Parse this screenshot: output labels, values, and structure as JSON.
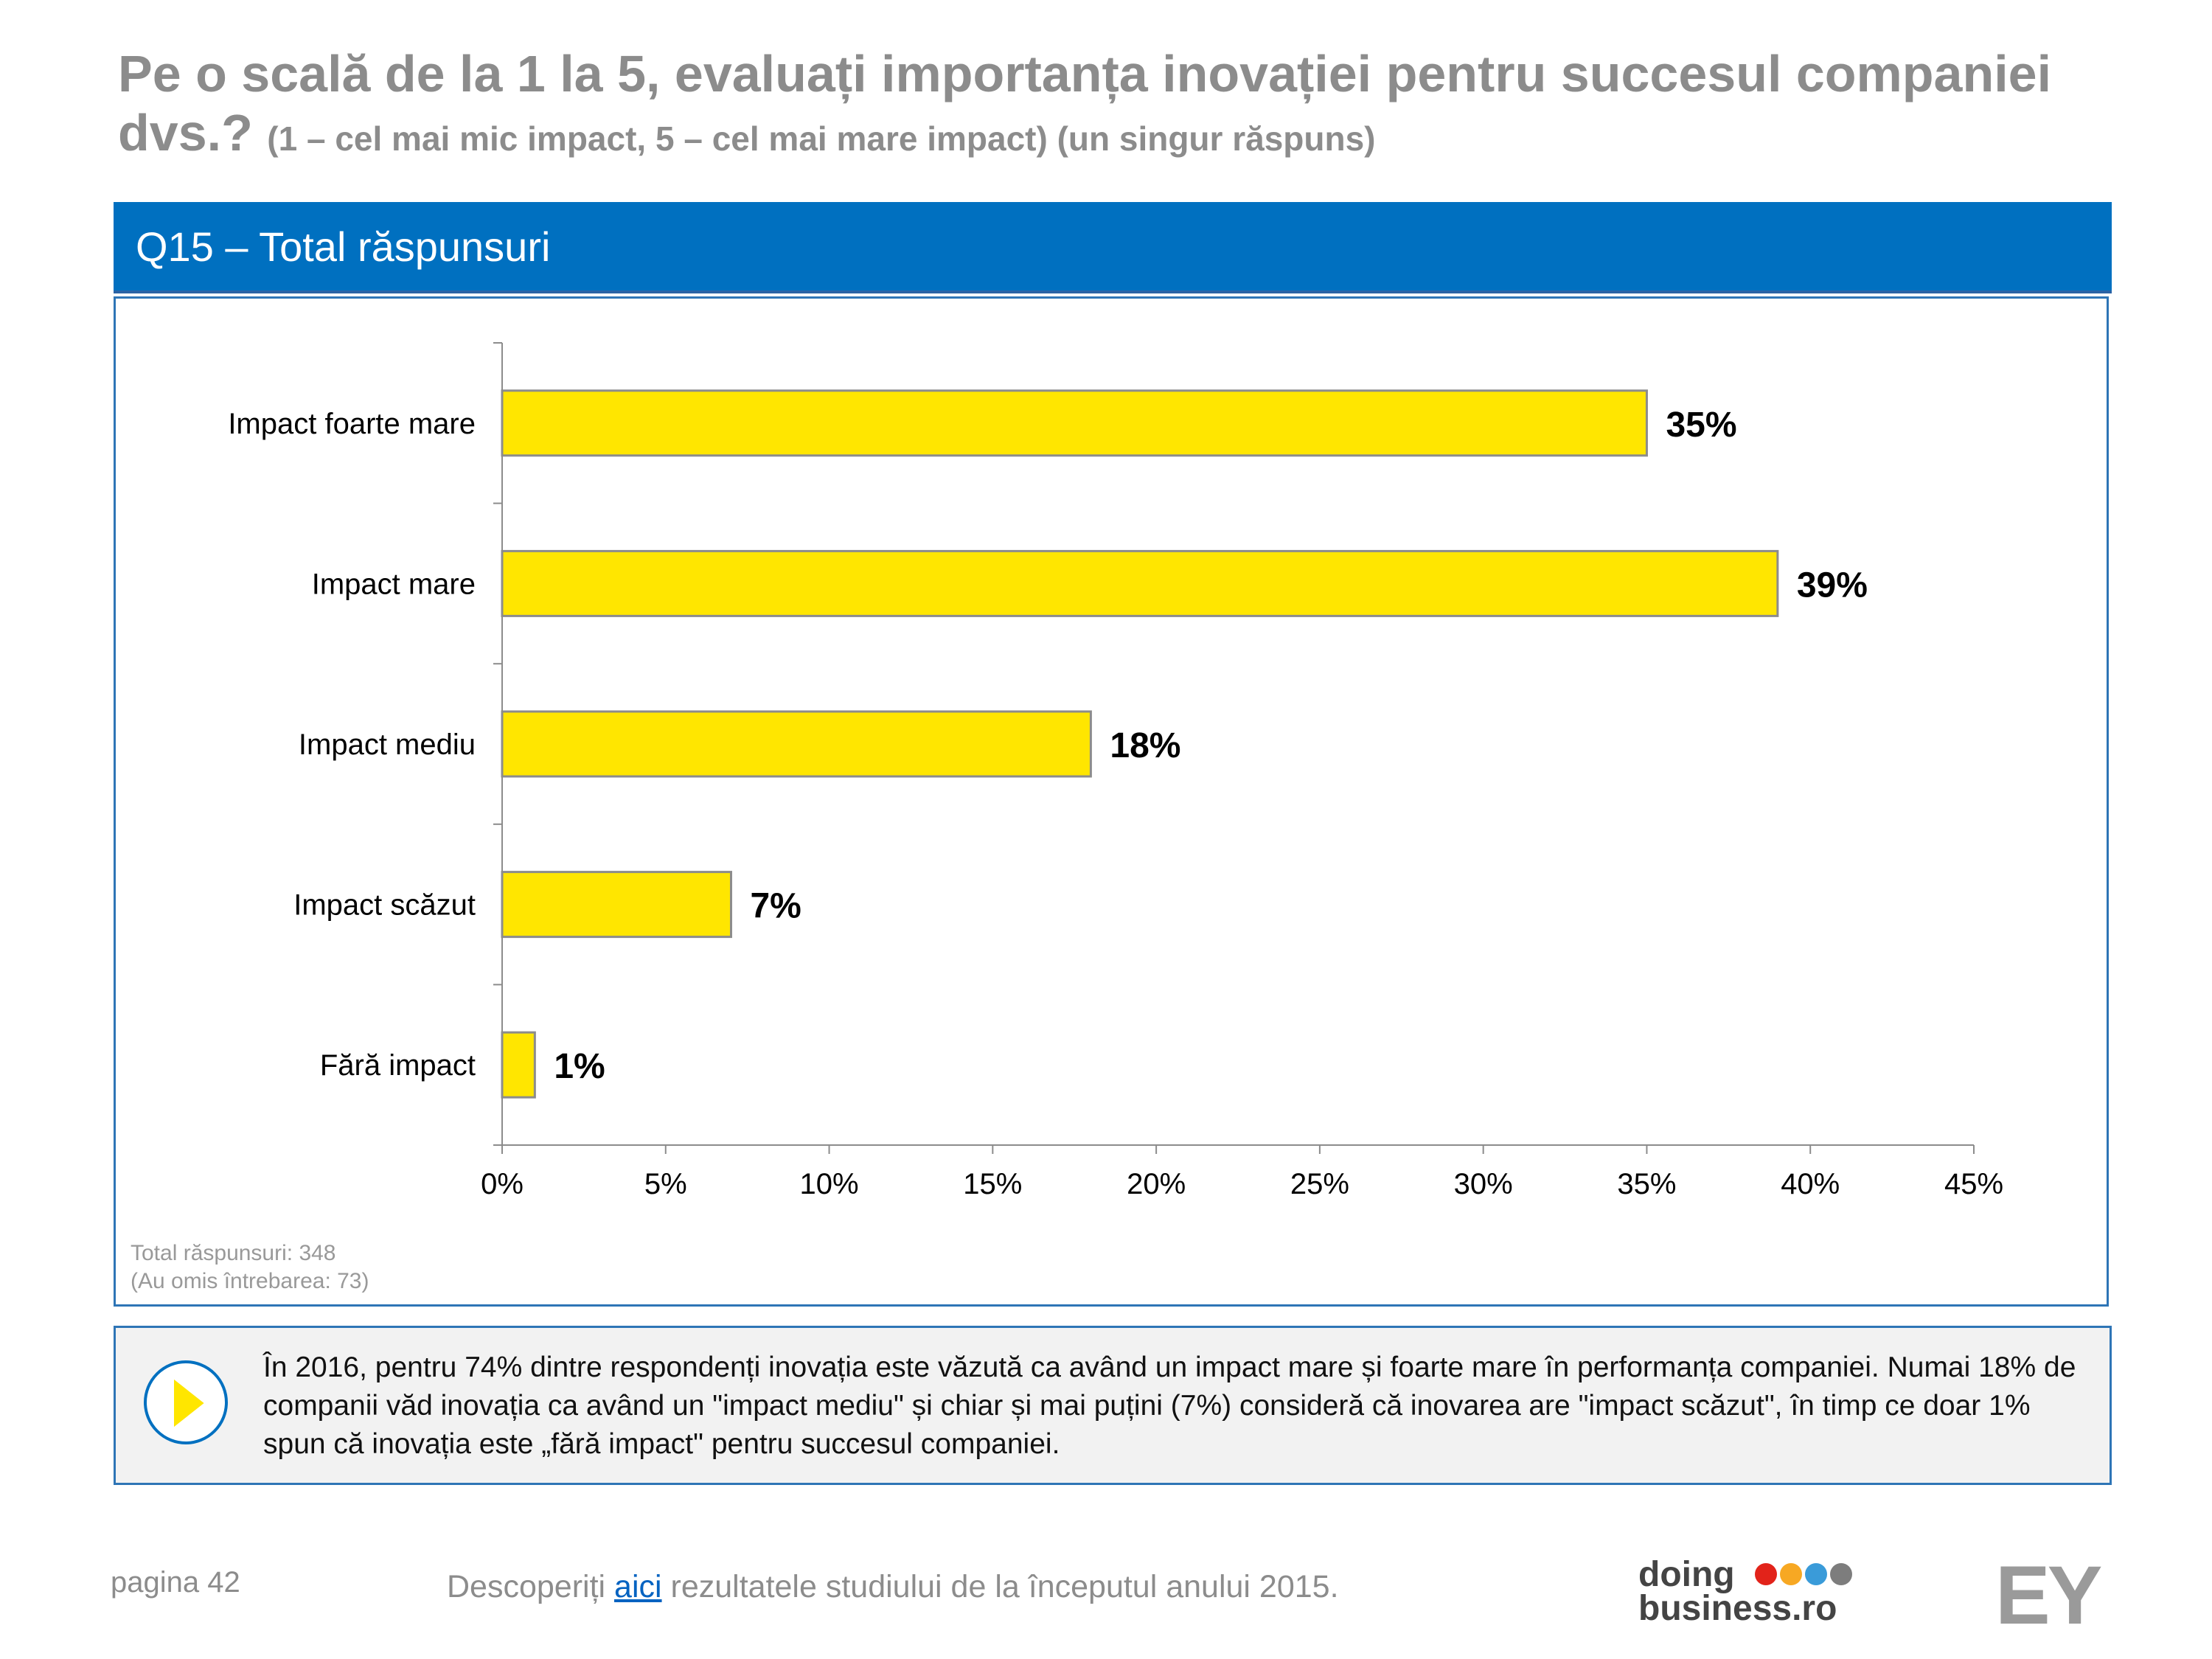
{
  "title": {
    "main": "Pe o scală de la 1 la 5, evaluați importanța inovației pentru succesul companiei dvs.?",
    "subtitle": "(1 – cel mai mic impact, 5 – cel mai mare impact) (un singur răspuns)"
  },
  "section": {
    "label": "Q15 – Total răspunsuri"
  },
  "chart_data": {
    "type": "bar",
    "orientation": "horizontal",
    "title": "Q15 – Total răspunsuri",
    "categories": [
      "Impact foarte mare",
      "Impact mare",
      "Impact mediu",
      "Impact scăzut",
      "Fără impact"
    ],
    "values": [
      35,
      39,
      18,
      7,
      1
    ],
    "value_labels": [
      "35%",
      "39%",
      "18%",
      "7%",
      "1%"
    ],
    "x_ticks": [
      "0%",
      "5%",
      "10%",
      "15%",
      "20%",
      "25%",
      "30%",
      "35%",
      "40%",
      "45%"
    ],
    "xlim": [
      0,
      45
    ],
    "xlabel": "",
    "ylabel": "",
    "bar_color": "#ffe600",
    "legend": "none",
    "grid": false
  },
  "notes": {
    "total": "Total răspunsuri: 348",
    "omitted": "(Au omis întrebarea: 73)"
  },
  "callout": {
    "text": "În 2016, pentru 74% dintre respondenți inovația este văzută ca având un impact mare și foarte mare în performanța companiei. Numai 18% de companii văd inovația ca având un \"impact mediu\" și chiar și mai puțini (7%) consideră că inovarea are \"impact scăzut\", în timp ce doar 1% spun că inovația este „fără impact\" pentru succesul companiei.",
    "icon": "play-arrow-icon"
  },
  "footer": {
    "page": "pagina 42",
    "link_prefix": "Descoperiți ",
    "link_text": "aici",
    "link_suffix": " rezultatele studiului de la începutul anului 2015."
  },
  "logos": {
    "doing": "doing",
    "business": "business.ro",
    "dot_colors": [
      "#e2231a",
      "#f7a823",
      "#3a9bd9",
      "#7d7d7d"
    ],
    "ey": "EY"
  },
  "colors": {
    "accent": "#0070c0",
    "title_gray": "#8c8c8c",
    "bar_yellow": "#ffe600"
  }
}
